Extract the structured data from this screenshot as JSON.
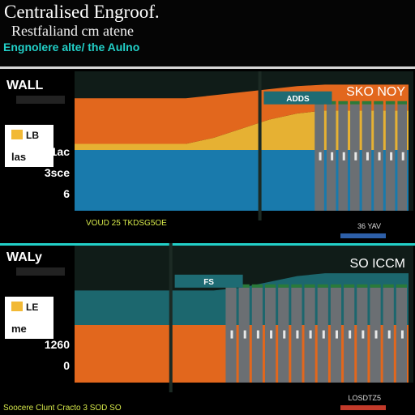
{
  "header": {
    "title": "Centralised Engroof.",
    "subtitle": "Restfaliand cm atene",
    "tagline": "Engnolere alte/ the Aulno"
  },
  "colors": {
    "yellow": "#f2b935",
    "orange": "#ee6b1e",
    "blue": "#1a7fb4",
    "teal": "#1e6b73",
    "gray": "#6b6f73",
    "green": "#2a7a3a",
    "panel_bg": "#101c18",
    "accent_cyan": "#22d0c8"
  },
  "chart_data": [
    {
      "type": "area",
      "ylabel": "WALL",
      "y_tick_labels": [
        "1ac",
        "3sce",
        "6"
      ],
      "legend": {
        "placement": "left",
        "entry_top": "LB",
        "entry_bottom": "las"
      },
      "right_label": "SKO NOY",
      "right_sublabel": "36 YAV",
      "cap_label": "ADDS",
      "x_caption": "VOUD 25 TKDSG5OE",
      "x": [
        0,
        1,
        2,
        3,
        4,
        5,
        6,
        7,
        8,
        9,
        10,
        11,
        12
      ],
      "series": [
        {
          "values": [
            4.0,
            4.0,
            4.0,
            4.0,
            4.0,
            4.0,
            4.0,
            4.0,
            4.0,
            4.0,
            4.0,
            4.0,
            4.0
          ]
        },
        {
          "values": [
            0.4,
            0.4,
            0.4,
            0.4,
            0.4,
            0.8,
            1.4,
            2.0,
            2.4,
            2.6,
            2.6,
            2.6,
            2.6
          ]
        },
        {
          "values": [
            3.0,
            3.0,
            3.0,
            3.0,
            3.0,
            2.8,
            2.4,
            2.0,
            1.8,
            1.7,
            1.7,
            1.7,
            1.7
          ]
        }
      ],
      "bars": {
        "start_x": 8.6,
        "count": 8,
        "top": 7.0
      }
    },
    {
      "type": "area",
      "ylabel": "WALy",
      "y_tick_labels": [
        "1260",
        "0"
      ],
      "legend": {
        "placement": "left",
        "entry_top": "LE",
        "entry_bottom": "me"
      },
      "right_label": "SO ICCM",
      "right_sublabel": "LOSDTZ5",
      "cap_label": "FS",
      "x_caption": "Soocere Clunt Cracto 3 SOD SO",
      "x": [
        0,
        1,
        2,
        3,
        4,
        5,
        6,
        7,
        8,
        9,
        10,
        11,
        12
      ],
      "series": [
        {
          "values": [
            4.0,
            4.0,
            4.0,
            4.0,
            4.0,
            4.0,
            4.0,
            4.0,
            4.0,
            4.0,
            4.0,
            4.0,
            4.0
          ]
        },
        {
          "values": [
            2.4,
            2.4,
            2.4,
            2.4,
            2.4,
            2.4,
            2.6,
            3.0,
            3.4,
            3.6,
            3.6,
            3.6,
            3.6
          ]
        }
      ],
      "bars": {
        "start_x": 5.4,
        "count": 14,
        "top": 6.6
      }
    }
  ]
}
